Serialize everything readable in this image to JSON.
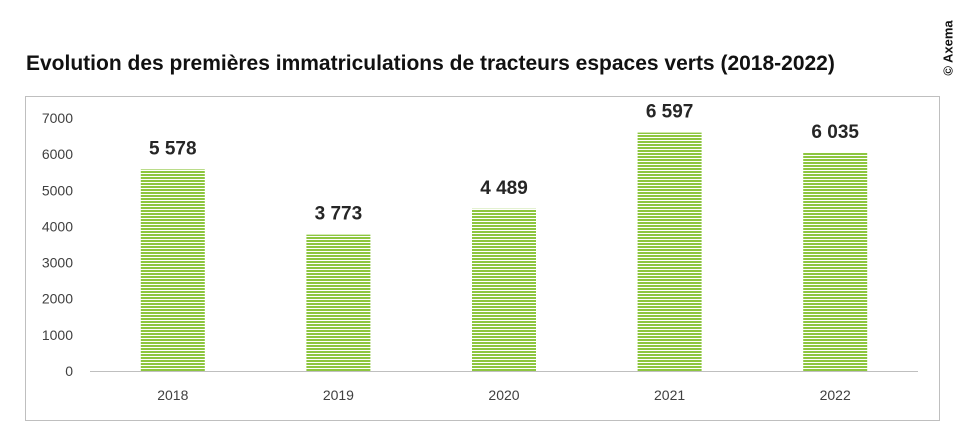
{
  "header": {
    "title": "Evolution des premières immatriculations de tracteurs espaces verts (2018-2022)",
    "credit": "© Axema"
  },
  "chart_data": {
    "type": "bar",
    "categories": [
      "2018",
      "2019",
      "2020",
      "2021",
      "2022"
    ],
    "values": [
      5578,
      3773,
      4489,
      6597,
      6035
    ],
    "data_labels": [
      "5 578",
      "3 773",
      "4 489",
      "6 597",
      "6 035"
    ],
    "ylim": [
      0,
      7000
    ],
    "yticks": [
      0,
      1000,
      2000,
      3000,
      4000,
      5000,
      6000,
      7000
    ],
    "grid": false,
    "legend": "none",
    "bar_color": "#8dc63f",
    "bar_stripe_color": "#ffffff"
  }
}
